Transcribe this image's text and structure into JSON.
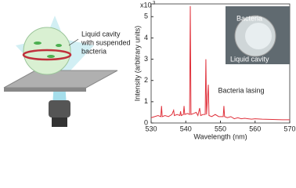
{
  "diagram": {
    "cavity_label": [
      "Liquid cavity",
      "with suspended",
      "bacteria"
    ]
  },
  "chart_data": {
    "type": "line",
    "xlabel": "Wavelength (nm)",
    "ylabel": "Intensity (arbitrary units)",
    "multiplier": "x10",
    "multiplier_exp": "3",
    "annotation": "Bacteria lasing",
    "inset_labels": [
      "Bacteria",
      "Liquid cavity"
    ],
    "xlim": [
      530,
      570
    ],
    "xticks": [
      530,
      540,
      550,
      560,
      570
    ],
    "ylim": [
      0,
      5.6
    ],
    "yticks": [
      0,
      1,
      2,
      3,
      4,
      5
    ],
    "series": [
      {
        "color": "#e0323c",
        "x": [
          530,
          531,
          532,
          532.8,
          533,
          533.2,
          534,
          535,
          536,
          536.5,
          536.7,
          537.5,
          538.3,
          538.5,
          538.7,
          539.3,
          539.5,
          539.7,
          540.5,
          541.1,
          541.3,
          541.5,
          542.3,
          543,
          543.5,
          544,
          544.3,
          545,
          545.6,
          545.8,
          546,
          546.5,
          546.7,
          547.5,
          548.5,
          549.5,
          550.8,
          551,
          551.2,
          552,
          553,
          554,
          555,
          556,
          557,
          558,
          559,
          560,
          562,
          564,
          566,
          568,
          570
        ],
        "values": [
          0.25,
          0.3,
          0.35,
          0.3,
          0.8,
          0.3,
          0.35,
          0.3,
          0.4,
          0.6,
          0.35,
          0.4,
          0.35,
          0.55,
          0.35,
          0.4,
          0.8,
          0.4,
          0.45,
          0.4,
          5.5,
          0.4,
          0.45,
          0.5,
          0.35,
          0.7,
          0.35,
          0.4,
          0.4,
          3.0,
          0.4,
          1.8,
          0.35,
          0.3,
          0.4,
          0.3,
          0.3,
          0.8,
          0.3,
          0.25,
          0.3,
          0.2,
          0.25,
          0.2,
          0.22,
          0.2,
          0.18,
          0.2,
          0.18,
          0.17,
          0.16,
          0.15,
          0.15
        ]
      }
    ]
  }
}
